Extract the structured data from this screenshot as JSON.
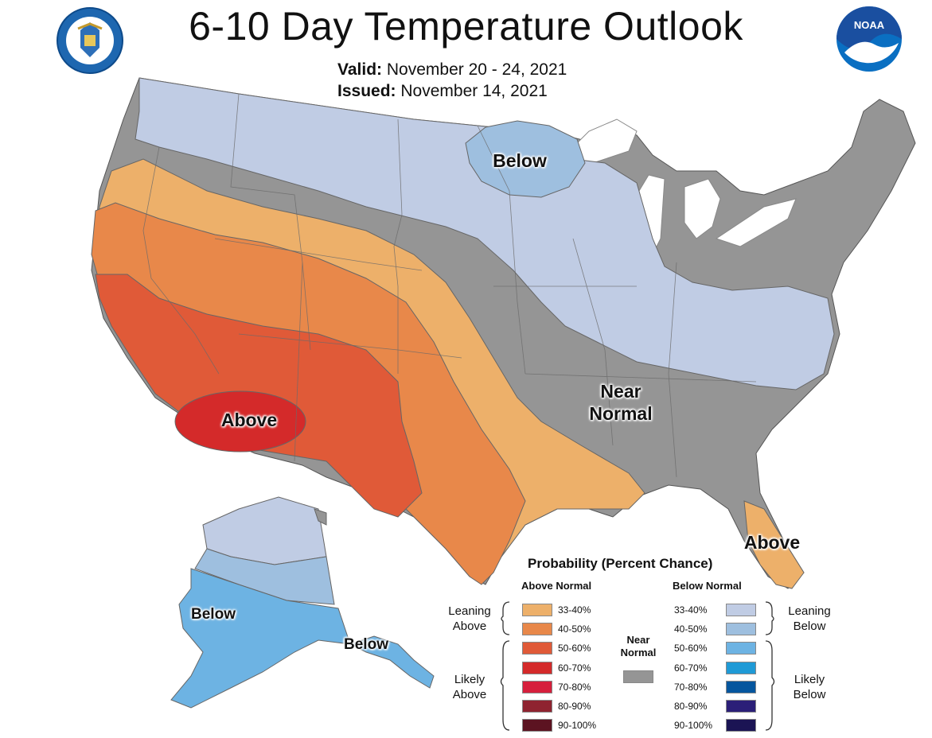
{
  "title": "6-10 Day Temperature Outlook",
  "valid_label": "Valid:",
  "valid_value": "November 20 - 24, 2021",
  "issued_label": "Issued:",
  "issued_value": "November 14, 2021",
  "logos": {
    "left": "department-of-commerce-seal",
    "right": "noaa-logo",
    "noaa_text": "NOAA"
  },
  "map_labels": {
    "below_north": "Below",
    "above_southwest": "Above",
    "near_normal_1": "Near",
    "near_normal_2": "Normal",
    "above_florida": "Above",
    "below_alaska_west": "Below",
    "below_alaska_panhandle": "Below"
  },
  "legend": {
    "title": "Probability (Percent Chance)",
    "above_header": "Above Normal",
    "below_header": "Below Normal",
    "leaning_above": [
      "Leaning",
      "Above"
    ],
    "likely_above": [
      "Likely",
      "Above"
    ],
    "leaning_below": [
      "Leaning",
      "Below"
    ],
    "likely_below": [
      "Likely",
      "Below"
    ],
    "near_normal": [
      "Near",
      "Normal"
    ],
    "ranges": [
      "33-40%",
      "40-50%",
      "50-60%",
      "60-70%",
      "70-80%",
      "80-90%",
      "90-100%"
    ],
    "above_colors": [
      "#edb06a",
      "#e8884a",
      "#e05a38",
      "#d42a2a",
      "#d61f3c",
      "#8f2330",
      "#5c1321"
    ],
    "below_colors": [
      "#c0cce4",
      "#9ebfdf",
      "#6db3e3",
      "#1f9ad6",
      "#05569e",
      "#2b1f78",
      "#1b1454"
    ],
    "near_color": "#959595"
  }
}
